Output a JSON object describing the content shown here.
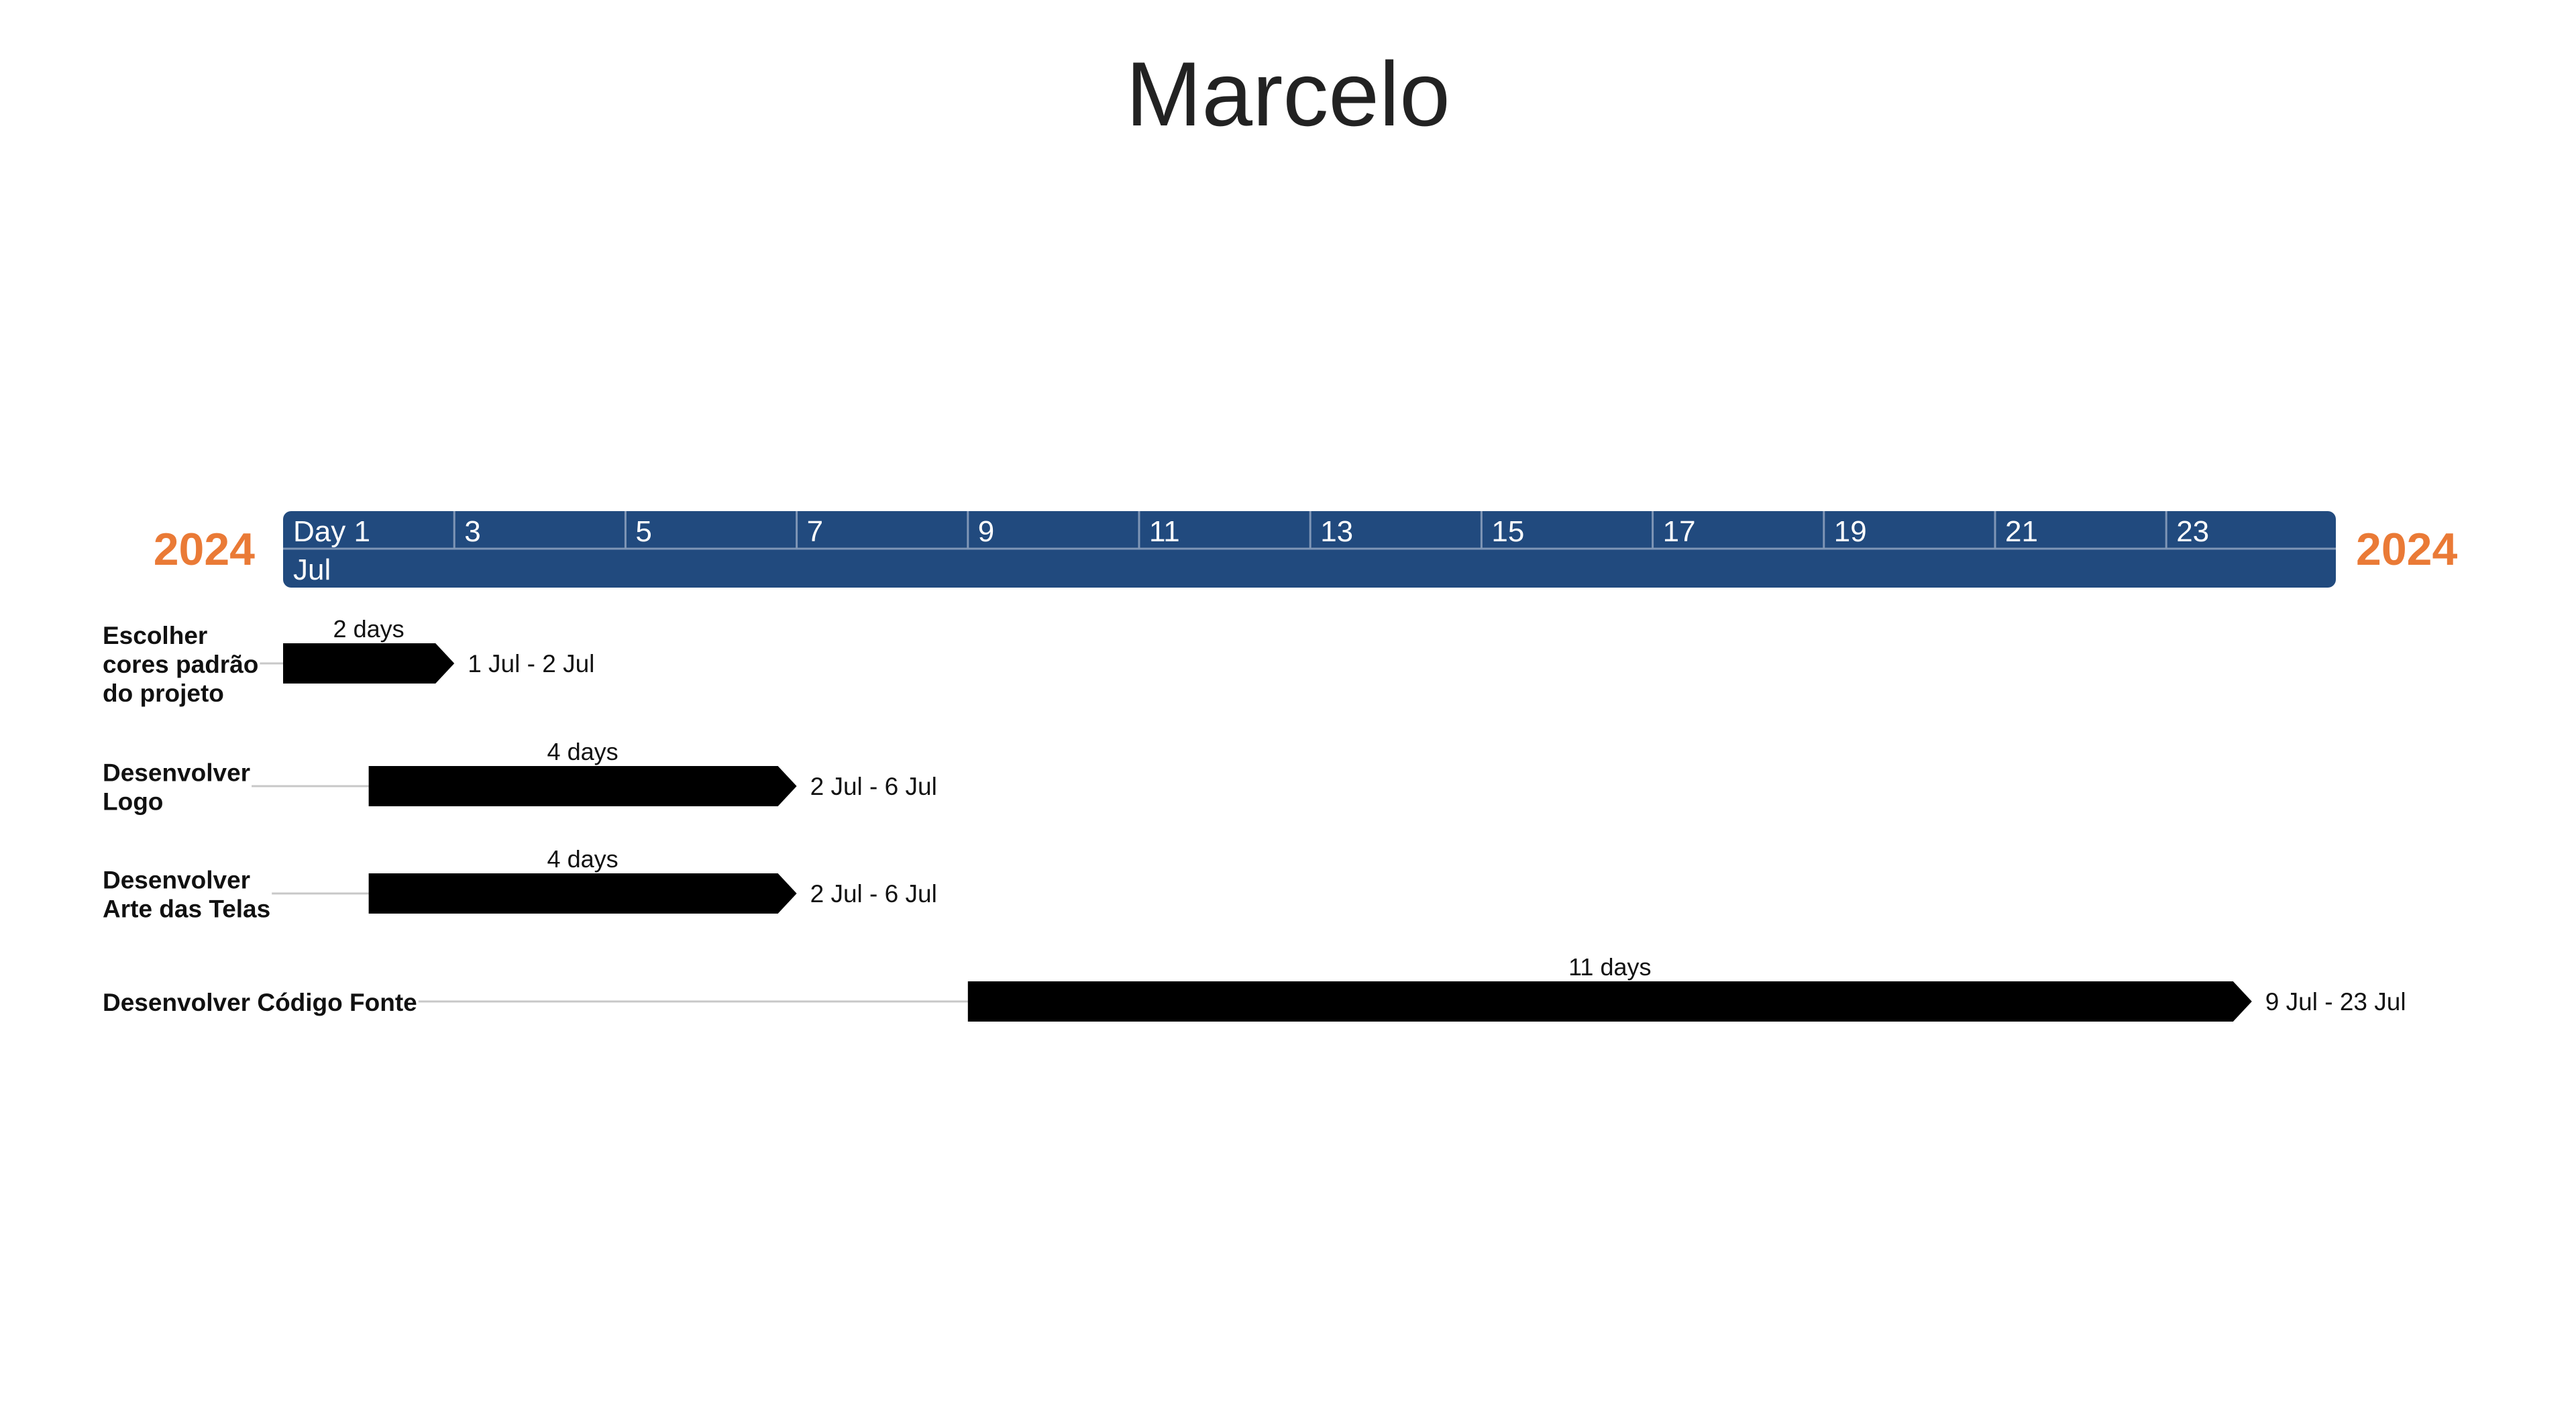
{
  "title": "Marcelo",
  "colors": {
    "header": "#214a7e",
    "year": "#ea7a36",
    "bar": "#000000",
    "connector": "#c8c8c8",
    "text": "#111111",
    "header_text": "#ffffff",
    "divider": "#7f96b6"
  },
  "header": {
    "year_left": "2024",
    "year_right": "2024",
    "month": "Jul"
  },
  "chart_data": {
    "type": "gantt",
    "title": "Marcelo",
    "x_range": [
      "2024-07-01",
      "2024-07-24"
    ],
    "ticks": [
      "Day 1",
      "3",
      "5",
      "7",
      "9",
      "11",
      "13",
      "15",
      "17",
      "19",
      "21",
      "23"
    ],
    "month_label": "Jul",
    "year": "2024",
    "tasks": [
      {
        "name": "Escolher cores padrão do projeto",
        "label_lines": [
          "Escolher",
          "cores padrão",
          "do projeto"
        ],
        "start": "2024-07-01",
        "end": "2024-07-02",
        "duration": "2 days",
        "range_label": "1 Jul - 2 Jul"
      },
      {
        "name": "Desenvolver Logo",
        "label_lines": [
          "Desenvolver",
          "Logo"
        ],
        "start": "2024-07-02",
        "end": "2024-07-06",
        "duration": "4 days",
        "range_label": "2 Jul - 6 Jul"
      },
      {
        "name": "Desenvolver Arte das Telas",
        "label_lines": [
          "Desenvolver",
          "Arte das Telas"
        ],
        "start": "2024-07-02",
        "end": "2024-07-06",
        "duration": "4 days",
        "range_label": "2 Jul - 6 Jul"
      },
      {
        "name": "Desenvolver Código Fonte",
        "label_lines": [
          "Desenvolver Código Fonte"
        ],
        "start": "2024-07-09",
        "end": "2024-07-23",
        "duration": "11 days",
        "range_label": "9 Jul - 23 Jul"
      }
    ]
  }
}
